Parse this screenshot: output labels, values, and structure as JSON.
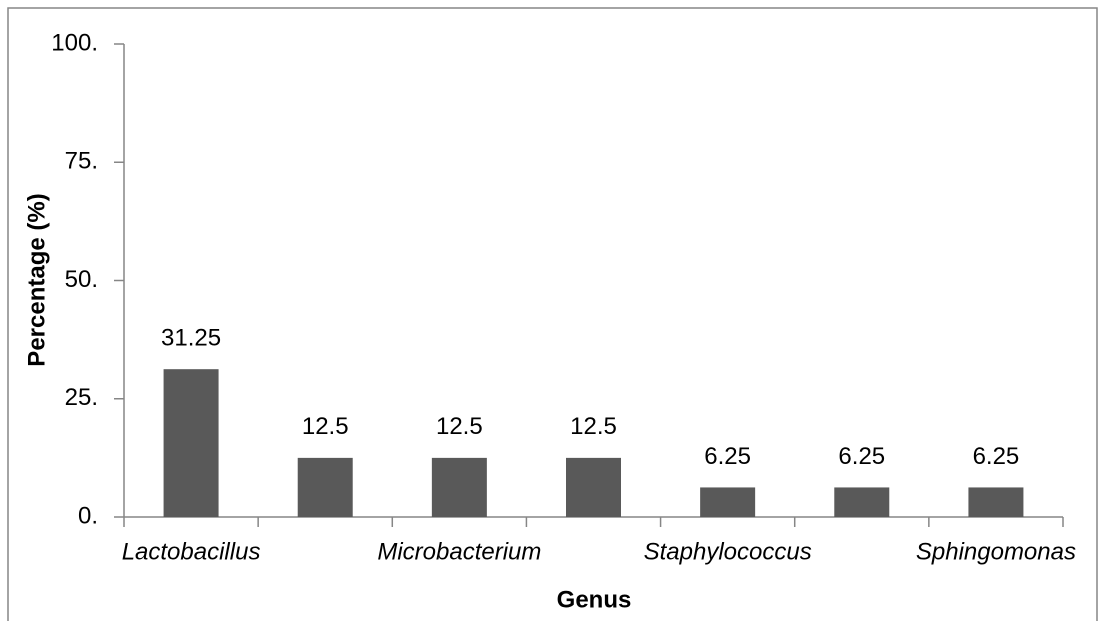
{
  "chart_data": {
    "type": "bar",
    "xlabel": "Genus",
    "ylabel": "Percentage (%)",
    "categories": [
      "Lactobacillus",
      null,
      "Microbacterium",
      null,
      "Staphylococcus",
      null,
      "Sphingomonas"
    ],
    "values": [
      31.25,
      12.5,
      12.5,
      12.5,
      6.25,
      6.25,
      6.25
    ],
    "color": "#595959",
    "ylim": [
      0,
      100
    ],
    "yticks": [
      {
        "value": 0,
        "label": "0."
      },
      {
        "value": 25,
        "label": "25."
      },
      {
        "value": 50,
        "label": "50."
      },
      {
        "value": 75,
        "label": "75."
      },
      {
        "value": 100,
        "label": "100."
      }
    ]
  }
}
